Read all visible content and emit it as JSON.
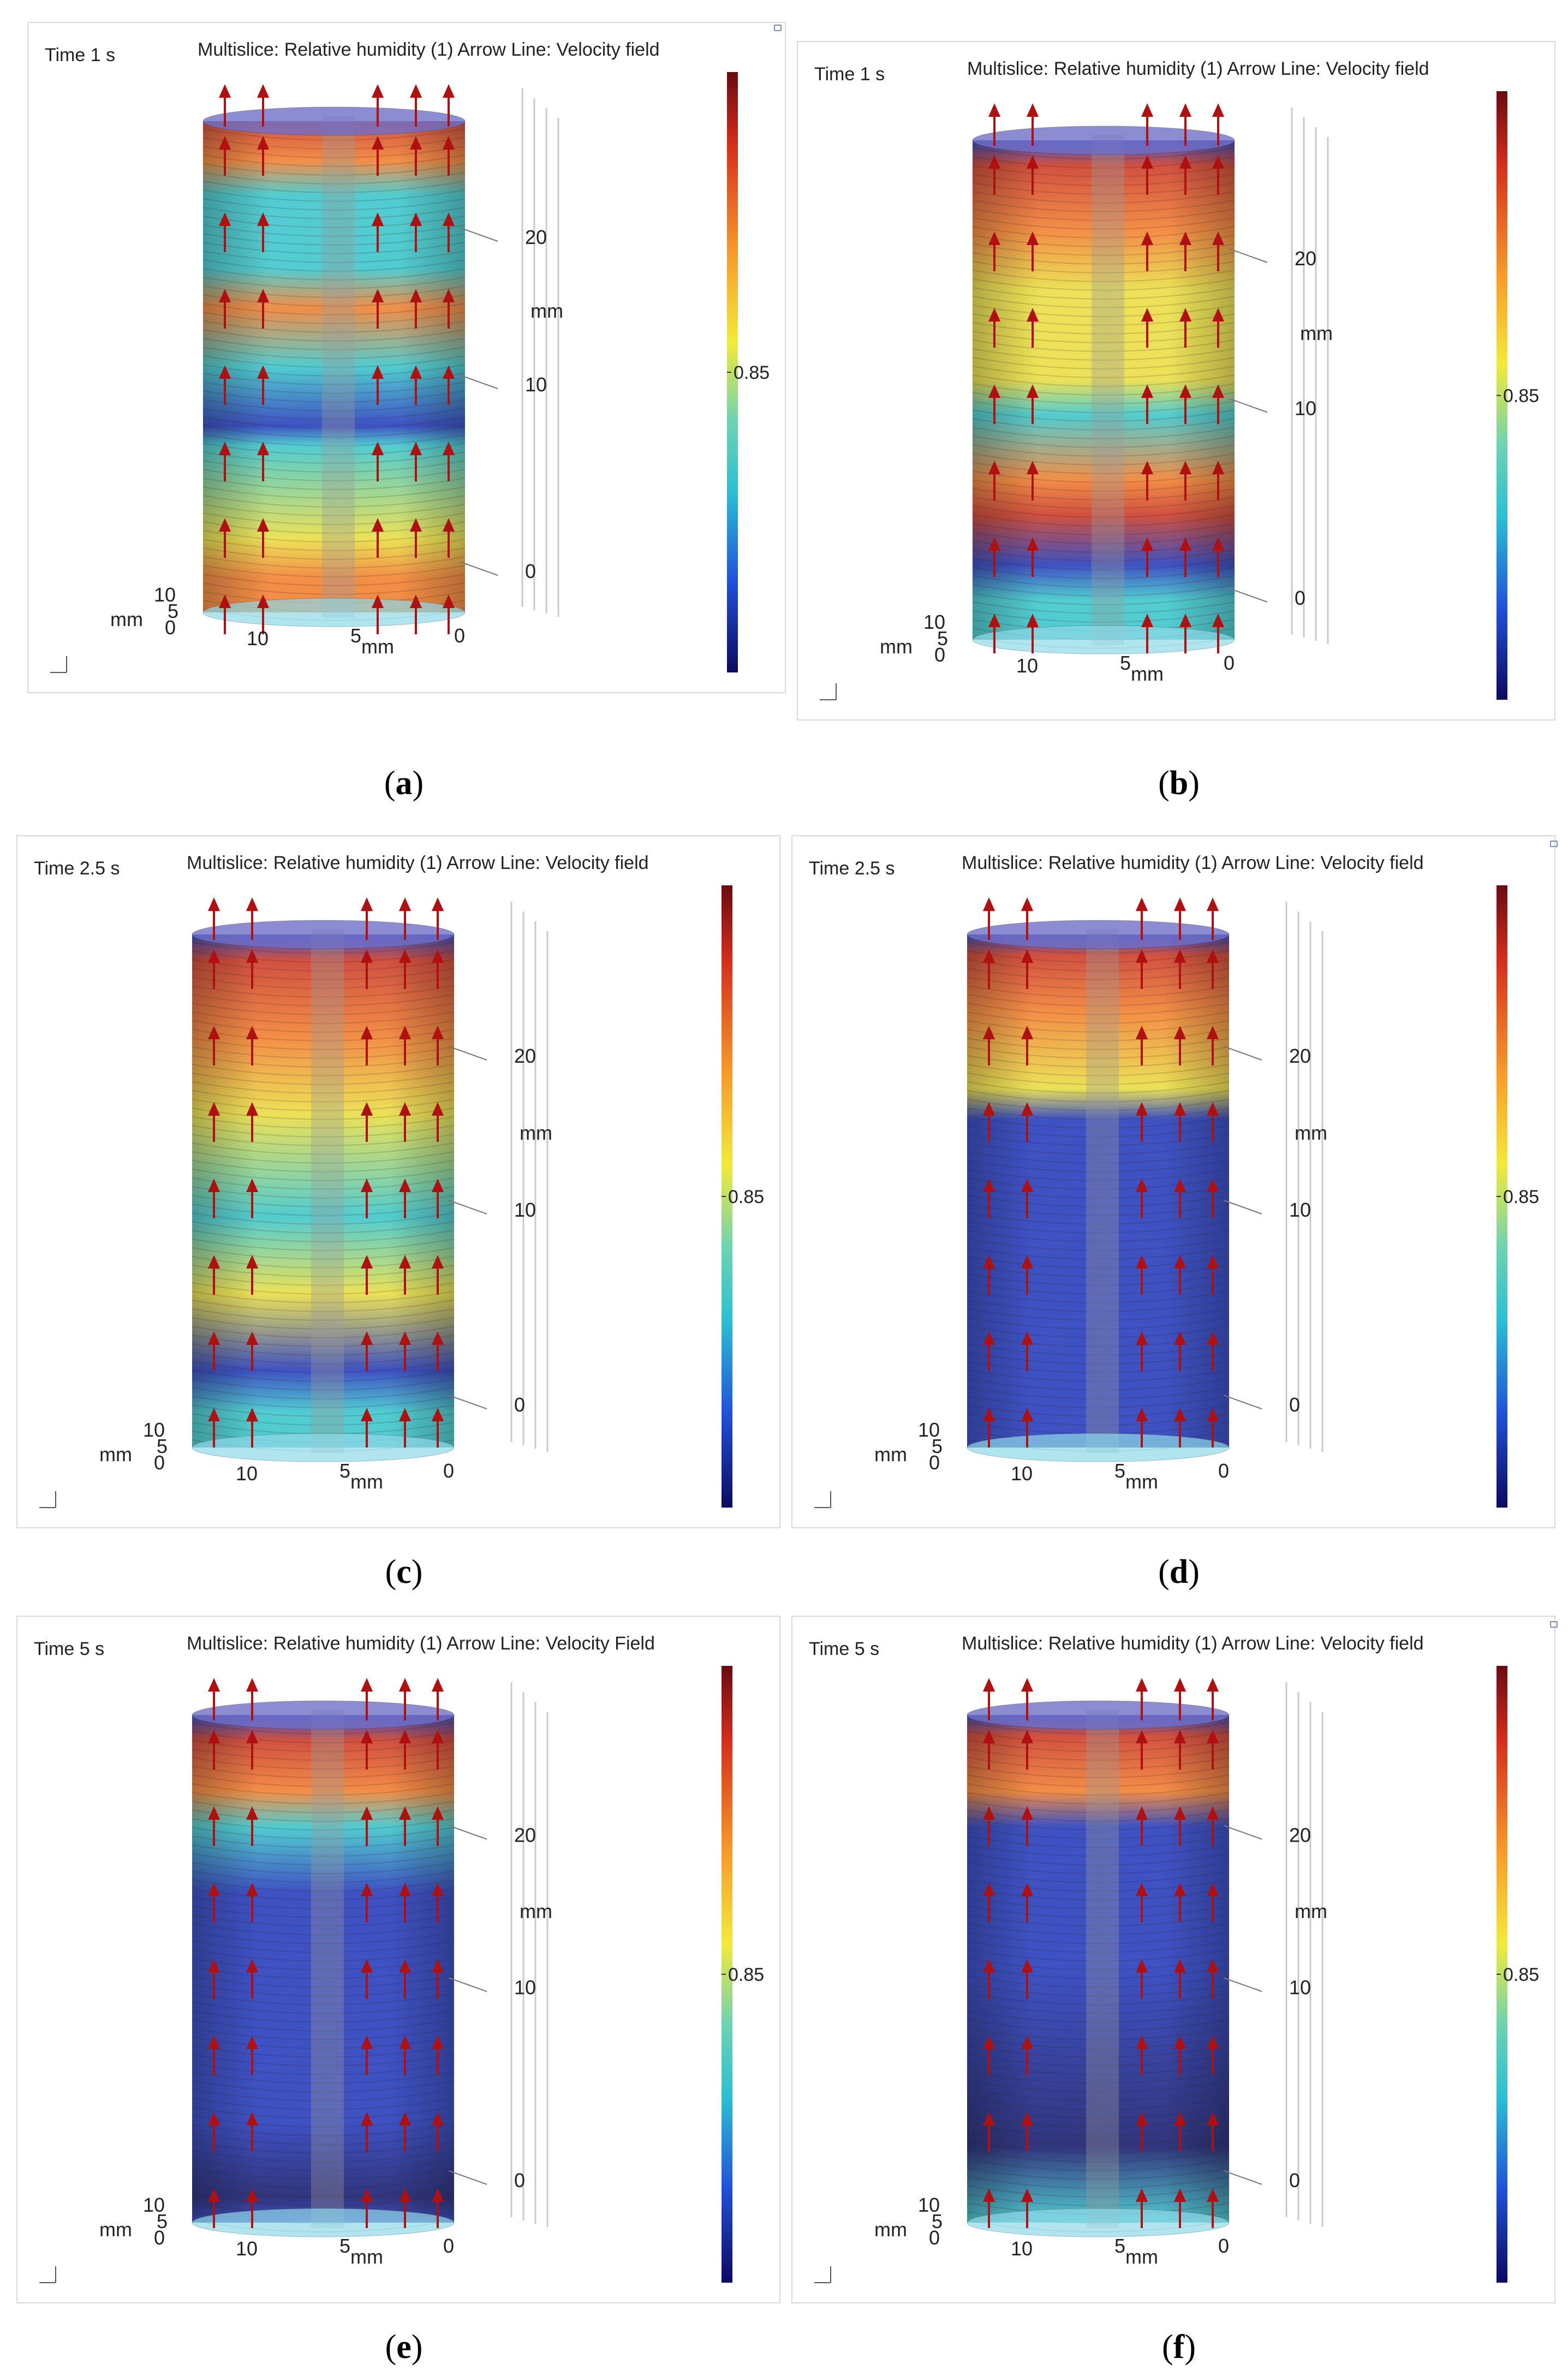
{
  "colors": {
    "red": "#c8321e",
    "orange": "#f07a26",
    "yellow": "#e8dc3a",
    "cyan": "#33c3c8",
    "blue": "#1c33b8",
    "navy": "#0d1266"
  },
  "colorbar": {
    "mid_label": "0.85"
  },
  "axes": {
    "unit": "mm",
    "z_ticks": [
      "20",
      "10",
      "0"
    ],
    "x_ticks": [
      "10",
      "5",
      "0"
    ],
    "y_ticks": [
      "10",
      "5",
      "0"
    ]
  },
  "panels": [
    {
      "caption": "a",
      "time": "Time 1 s",
      "title": "Multislice: Relative humidity (1) Arrow Line: Velocity field"
    },
    {
      "caption": "b",
      "time": "Time 1 s",
      "title": "Multislice: Relative humidity (1) Arrow Line: Velocity field"
    },
    {
      "caption": "c",
      "time": "Time 2.5 s",
      "title": "Multislice: Relative humidity (1) Arrow Line: Velocity field"
    },
    {
      "caption": "d",
      "time": "Time 2.5 s",
      "title": "Multislice: Relative humidity (1) Arrow Line: Velocity field"
    },
    {
      "caption": "e",
      "time": "Time 5 s",
      "title": "Multislice: Relative humidity (1) Arrow Line: Velocity Field"
    },
    {
      "caption": "f",
      "time": "Time 5 s",
      "title": "Multislice: Relative humidity (1) Arrow Line: Velocity field"
    }
  ]
}
